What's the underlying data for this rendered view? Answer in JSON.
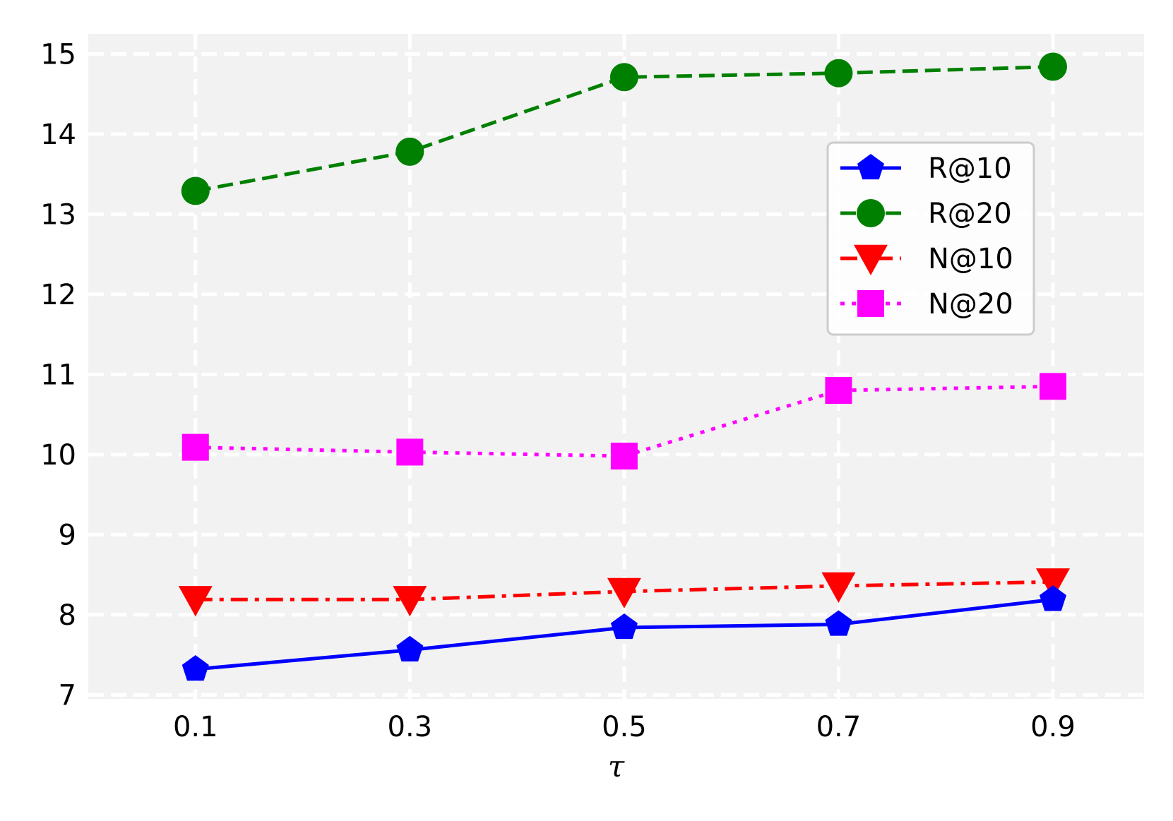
{
  "chart_data": {
    "type": "line",
    "x": [
      0.1,
      0.3,
      0.5,
      0.7,
      0.9
    ],
    "x_tick_labels": [
      "0.1",
      "0.3",
      "0.5",
      "0.7",
      "0.9"
    ],
    "xlabel": "τ",
    "ylabel": "",
    "title": "",
    "xlim": [
      0.0,
      0.985
    ],
    "ylim": [
      6.95,
      15.25
    ],
    "y_ticks": [
      7,
      8,
      9,
      10,
      11,
      12,
      13,
      14,
      15
    ],
    "y_tick_labels": [
      "7",
      "8",
      "9",
      "10",
      "11",
      "12",
      "13",
      "14",
      "15"
    ],
    "grid": true,
    "legend_position": "upper right",
    "series": [
      {
        "name": "R@10",
        "values": [
          7.32,
          7.56,
          7.84,
          7.88,
          8.19
        ],
        "color": "#0000ff",
        "dash": "solid",
        "marker": "pentagon"
      },
      {
        "name": "R@20",
        "values": [
          13.29,
          13.78,
          14.71,
          14.76,
          14.84
        ],
        "color": "#008000",
        "dash": "dashed",
        "marker": "circle"
      },
      {
        "name": "N@10",
        "values": [
          8.19,
          8.19,
          8.29,
          8.36,
          8.41
        ],
        "color": "#ff0000",
        "dash": "dashdot",
        "marker": "triangle-down"
      },
      {
        "name": "N@20",
        "values": [
          10.09,
          10.03,
          9.98,
          10.8,
          10.85
        ],
        "color": "#ff00ff",
        "dash": "dotted",
        "marker": "square"
      }
    ]
  }
}
